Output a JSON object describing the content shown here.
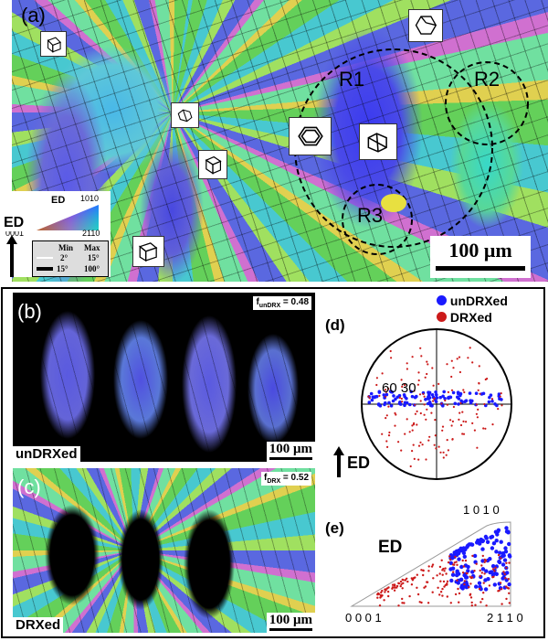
{
  "panel_a": {
    "letter": "(a)",
    "regions": [
      "R1",
      "R2",
      "R3"
    ],
    "scale_bar": "100 μm",
    "ed_label": "ED",
    "legend": {
      "title": "ED",
      "corner_top": "1010",
      "corner_left": "0001",
      "corner_right": "2110",
      "table_header_min": "Min",
      "table_header_max": "Max",
      "row1_min": "2°",
      "row1_max": "15°",
      "row2_min": "15°",
      "row2_max": "100°"
    }
  },
  "panel_b": {
    "letter": "(b)",
    "fraction_text": "f",
    "fraction_sub": "unDRX",
    "fraction_value": " = 0.48",
    "label": "unDRXed",
    "scale_bar": "100 μm"
  },
  "panel_c": {
    "letter": "(c)",
    "fraction_text": "f",
    "fraction_sub": "DRX",
    "fraction_value": " = 0.52",
    "label": "DRXed",
    "scale_bar": "100 μm"
  },
  "panel_d": {
    "letter": "(d)",
    "legend_undrx": "unDRXed",
    "legend_drx": "DRXed",
    "ring_label": "60 30",
    "ed_label": "ED",
    "colors": {
      "undrx": "#1a1aff",
      "drx": "#cc1a1a"
    }
  },
  "panel_e": {
    "letter": "(e)",
    "ed_label": "ED",
    "corner_top": "1 0 1 0",
    "corner_left": "0 0 0 1",
    "corner_right": "2 1 1 0"
  }
}
